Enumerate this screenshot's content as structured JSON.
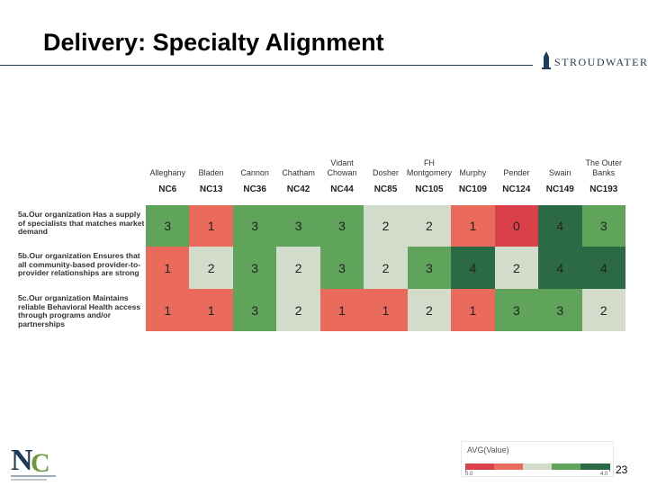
{
  "chart_data": {
    "type": "heatmap",
    "title": "Delivery:  Specialty Alignment",
    "columns": [
      "Alleghany",
      "Bladen",
      "Cannon",
      "Chatham",
      "Vidant Chowan",
      "Dosher",
      "FH Montgomery",
      "Murphy",
      "Pender",
      "Swain",
      "The Outer Banks"
    ],
    "column_codes": [
      "NC6",
      "NC13",
      "NC36",
      "NC42",
      "NC44",
      "NC85",
      "NC105",
      "NC109",
      "NC124",
      "NC149",
      "NC193"
    ],
    "rows": [
      "5a.Our organization Has a supply of specialists that matches market demand",
      "5b.Our organization Ensures that all community-based provider-to-provider relationships are strong",
      "5c.Our organization Maintains reliable Behavioral Health access through programs and/or partnerships"
    ],
    "values": [
      [
        3,
        1,
        3,
        3,
        3,
        2,
        2,
        1,
        0,
        4,
        3
      ],
      [
        1,
        2,
        3,
        2,
        3,
        2,
        3,
        4,
        2,
        4,
        4
      ],
      [
        1,
        1,
        3,
        2,
        1,
        1,
        2,
        1,
        3,
        3,
        2
      ]
    ],
    "colors": [
      "#d9404a",
      "#ea6a5c",
      "#d3dccb",
      "#60a45c",
      "#2b6a44"
    ],
    "legend_title": "AVG(Value)",
    "legend_ticks": [
      {
        "value": 0,
        "label": "0.0"
      },
      {
        "value": 4,
        "label": "4.0"
      }
    ]
  },
  "slide": {
    "logo": "STROUDWATER",
    "page_number": "23"
  }
}
